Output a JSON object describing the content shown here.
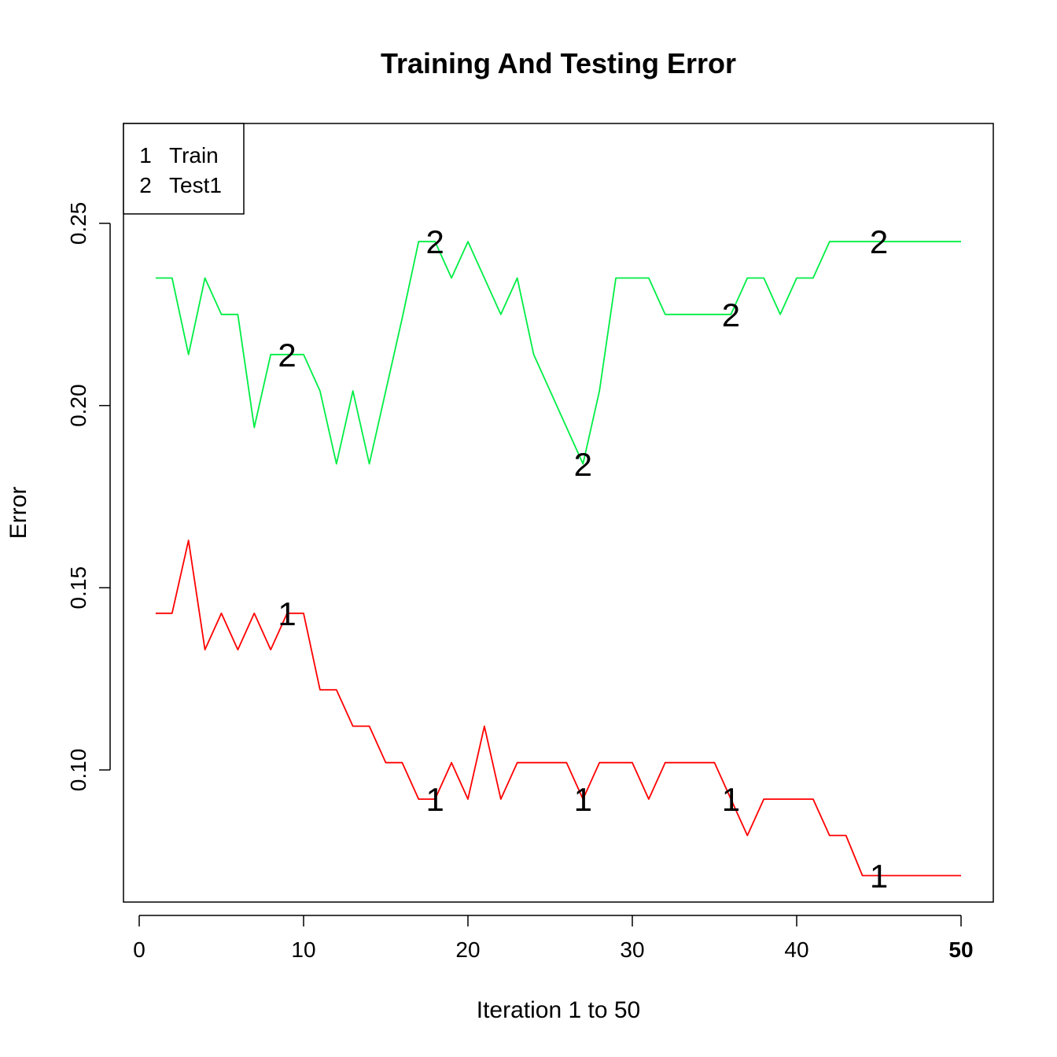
{
  "chart_data": {
    "type": "line",
    "title": "Training And Testing Error",
    "xlabel": "Iteration 1 to 50",
    "ylabel": "Error",
    "xlim": [
      0,
      50
    ],
    "ylim": [
      0.07,
      0.275
    ],
    "x_ticks": [
      "0",
      "10",
      "20",
      "30",
      "40",
      "50"
    ],
    "x_tick_values": [
      0,
      10,
      20,
      30,
      40,
      50
    ],
    "x_tick_bold": [
      false,
      false,
      false,
      false,
      false,
      true
    ],
    "y_ticks": [
      "0.10",
      "0.15",
      "0.20",
      "0.25"
    ],
    "y_tick_values": [
      0.1,
      0.15,
      0.2,
      0.25
    ],
    "grid": false,
    "legend": {
      "position": "top-left",
      "entries": [
        {
          "symbol": "1",
          "label": "Train"
        },
        {
          "symbol": "2",
          "label": "Test1"
        }
      ]
    },
    "x": [
      1,
      2,
      3,
      4,
      5,
      6,
      7,
      8,
      9,
      10,
      11,
      12,
      13,
      14,
      15,
      16,
      17,
      18,
      19,
      20,
      21,
      22,
      23,
      24,
      25,
      26,
      27,
      28,
      29,
      30,
      31,
      32,
      33,
      34,
      35,
      36,
      37,
      38,
      39,
      40,
      41,
      42,
      43,
      44,
      45,
      46,
      47,
      48,
      49,
      50
    ],
    "series": [
      {
        "symbol": "1",
        "color": "#ff0000",
        "values": [
          0.143,
          0.143,
          0.163,
          0.133,
          0.143,
          0.133,
          0.143,
          0.133,
          0.143,
          0.143,
          0.122,
          0.122,
          0.112,
          0.112,
          0.102,
          0.102,
          0.092,
          0.092,
          0.102,
          0.092,
          0.112,
          0.092,
          0.102,
          0.102,
          0.102,
          0.102,
          0.092,
          0.102,
          0.102,
          0.102,
          0.092,
          0.102,
          0.102,
          0.102,
          0.102,
          0.092,
          0.082,
          0.092,
          0.092,
          0.092,
          0.092,
          0.082,
          0.082,
          0.071,
          0.071,
          0.071,
          0.071,
          0.071,
          0.071,
          0.071
        ],
        "marker_x": [
          9,
          18,
          27,
          36,
          45
        ]
      },
      {
        "symbol": "2",
        "color": "#00ee44",
        "values": [
          0.235,
          0.235,
          0.214,
          0.235,
          0.225,
          0.225,
          0.194,
          0.214,
          0.214,
          0.214,
          0.204,
          0.184,
          0.204,
          0.184,
          0.204,
          0.224,
          0.245,
          0.245,
          0.235,
          0.245,
          0.235,
          0.225,
          0.235,
          0.214,
          0.204,
          0.194,
          0.184,
          0.204,
          0.235,
          0.235,
          0.235,
          0.225,
          0.225,
          0.225,
          0.225,
          0.225,
          0.235,
          0.235,
          0.225,
          0.235,
          0.235,
          0.245,
          0.245,
          0.245,
          0.245,
          0.245,
          0.245,
          0.245,
          0.245,
          0.245
        ],
        "marker_x": [
          9,
          18,
          27,
          36,
          45
        ]
      }
    ]
  }
}
